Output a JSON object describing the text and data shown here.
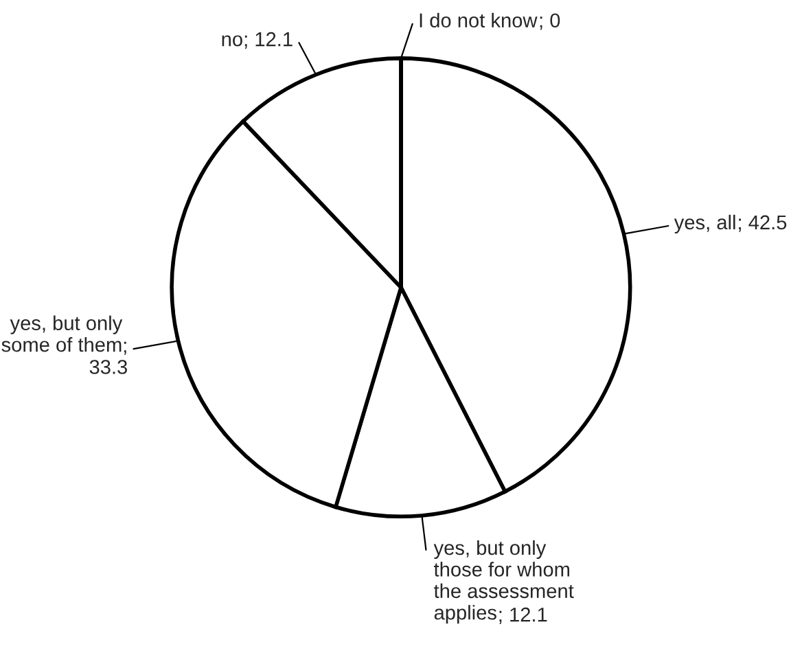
{
  "chart_data": {
    "type": "pie",
    "categories": [
      "yes, all",
      "yes, but only those for whom the assessment applies",
      "yes, but only some of them",
      "no",
      "I do not know"
    ],
    "values": [
      42.5,
      12.1,
      33.3,
      12.1,
      0
    ],
    "colors": [
      "#ffffff",
      "#ffffff",
      "#ffffff",
      "#ffffff",
      "#ffffff"
    ],
    "value_labels": [
      "; 42.5",
      "; 12.1",
      "; 33.3",
      "; 12.1",
      "; 0"
    ],
    "legend": false
  }
}
